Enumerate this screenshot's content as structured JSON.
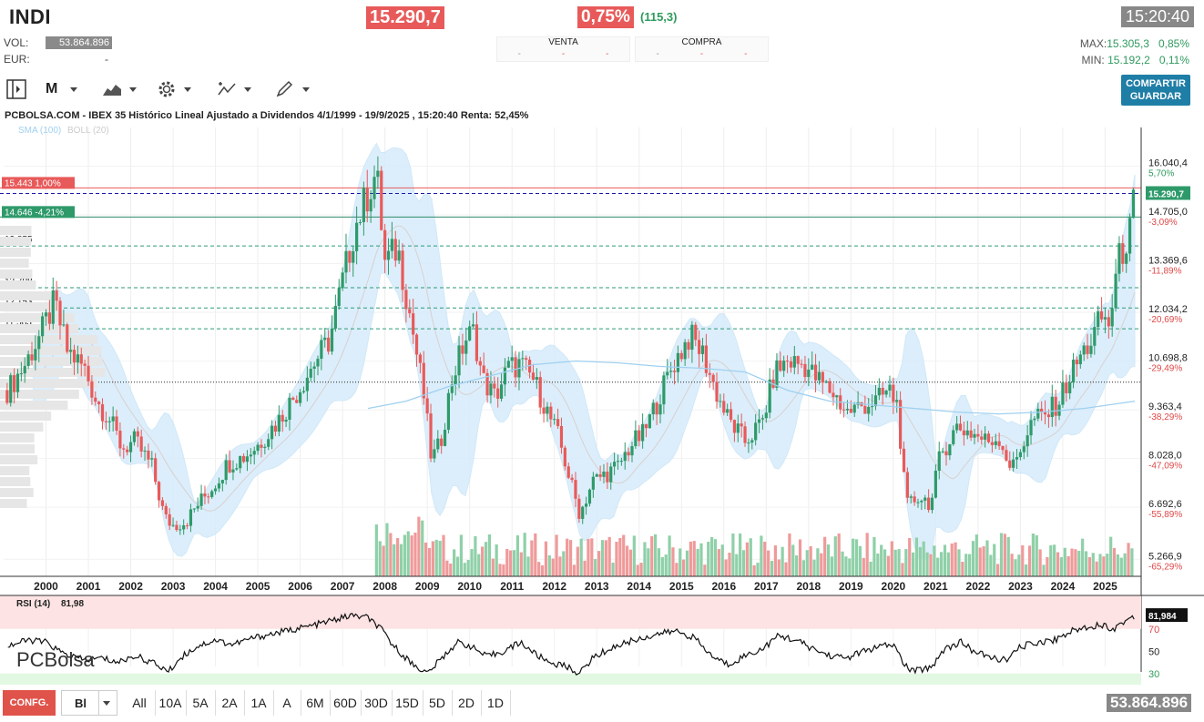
{
  "header": {
    "ticker": "INDI",
    "price": "15.290,7",
    "change_pct": "0,75%",
    "change_abs": "(115,3)",
    "time": "15:20:40",
    "vol_label": "VOL:",
    "vol_value": "53.864.896",
    "eur_label": "EUR:",
    "eur_value": "-",
    "venta_label": "VENTA",
    "compra_label": "COMPRA",
    "dash": "-",
    "max_label": "MAX:",
    "max_value": "15.305,3",
    "max_pct": "0,85%",
    "min_label": "MIN:",
    "min_value": "15.192,2",
    "min_pct": "0,11%"
  },
  "toolbar": {
    "period": "M",
    "share_label": "COMPARTIR",
    "save_label": "GUARDAR"
  },
  "colors": {
    "up": "#2e9a6a",
    "down": "#e85a5a",
    "band": "#d6ecfb",
    "sma": "#9fd0f0",
    "accent": "#1f7ea6"
  },
  "chart_data": [
    {
      "type": "candlestick",
      "title": "PCBOLSA.COM - IBEX 35 Histórico Lineal Ajustado a Dividendos 4/1/1999 - 19/9/2025 , 15:20:40 Renta: 52,45%",
      "legend": [
        "SMA (100)",
        "BOLL (20)"
      ],
      "x_labels": [
        "2000",
        "2001",
        "2002",
        "2003",
        "2004",
        "2005",
        "2006",
        "2007",
        "2008",
        "2009",
        "2010",
        "2011",
        "2012",
        "2013",
        "2014",
        "2015",
        "2016",
        "2017",
        "2018",
        "2019",
        "2020",
        "2021",
        "2022",
        "2023",
        "2024",
        "2025"
      ],
      "y_ticks": [
        {
          "value": 16040.4,
          "label": "16.040,4",
          "pct": "5,70%"
        },
        {
          "value": 14705.0,
          "label": "14.705,0",
          "pct": "-3,09%"
        },
        {
          "value": 13369.6,
          "label": "13.369,6",
          "pct": "-11,89%"
        },
        {
          "value": 12034.2,
          "label": "12.034,2",
          "pct": "-20,69%"
        },
        {
          "value": 10698.8,
          "label": "10.698,8",
          "pct": "-29,49%"
        },
        {
          "value": 9363.4,
          "label": "9.363,4",
          "pct": "-38,29%"
        },
        {
          "value": 8028.0,
          "label": "8.028,0",
          "pct": "-47,09%"
        },
        {
          "value": 6692.6,
          "label": "6.692,6",
          "pct": "-55,89%"
        },
        {
          "value": 5266.9,
          "label": "5.266,9",
          "pct": "-65,29%"
        }
      ],
      "ylim": [
        4800,
        17100
      ],
      "last_price": {
        "value": 15290.7,
        "label": "15.290,7"
      },
      "levels": [
        {
          "value": 15443,
          "label": "15.443  1,00%",
          "kind": "resistance"
        },
        {
          "value": 14646,
          "label": "14.646  -4,21%",
          "kind": "support"
        },
        {
          "value": 13855,
          "label": "13.855",
          "kind": "dashed"
        },
        {
          "value": 12708,
          "label": "12.708",
          "kind": "dashed"
        },
        {
          "value": 12153,
          "label": "12.153",
          "kind": "dashed"
        },
        {
          "value": 11583,
          "label": "11.583",
          "kind": "dashed"
        },
        {
          "value": 10120,
          "label": "",
          "kind": "dotted"
        }
      ],
      "close_path": [
        [
          1999.1,
          9900
        ],
        [
          1999.5,
          10600
        ],
        [
          1999.9,
          11500
        ],
        [
          2000.2,
          12300
        ],
        [
          2000.5,
          11000
        ],
        [
          2000.9,
          10500
        ],
        [
          2001.2,
          9600
        ],
        [
          2001.5,
          9100
        ],
        [
          2001.8,
          8300
        ],
        [
          2002.1,
          8500
        ],
        [
          2002.5,
          7800
        ],
        [
          2002.8,
          6400
        ],
        [
          2003.0,
          6200
        ],
        [
          2003.3,
          6300
        ],
        [
          2003.6,
          6800
        ],
        [
          2003.9,
          7200
        ],
        [
          2004.3,
          7900
        ],
        [
          2004.7,
          8100
        ],
        [
          2005.0,
          8400
        ],
        [
          2005.5,
          9100
        ],
        [
          2005.9,
          9800
        ],
        [
          2006.3,
          10600
        ],
        [
          2006.7,
          11300
        ],
        [
          2007.0,
          12900
        ],
        [
          2007.3,
          14400
        ],
        [
          2007.6,
          15300
        ],
        [
          2007.8,
          15900
        ],
        [
          2008.0,
          13400
        ],
        [
          2008.3,
          13800
        ],
        [
          2008.6,
          11900
        ],
        [
          2008.9,
          9900
        ],
        [
          2009.1,
          8000
        ],
        [
          2009.3,
          8400
        ],
        [
          2009.6,
          10300
        ],
        [
          2009.9,
          11300
        ],
        [
          2010.1,
          11500
        ],
        [
          2010.3,
          10200
        ],
        [
          2010.6,
          9700
        ],
        [
          2010.9,
          10500
        ],
        [
          2011.2,
          10600
        ],
        [
          2011.5,
          10200
        ],
        [
          2011.8,
          9400
        ],
        [
          2012.1,
          8600
        ],
        [
          2012.4,
          7300
        ],
        [
          2012.6,
          6500
        ],
        [
          2012.9,
          7400
        ],
        [
          2013.2,
          7600
        ],
        [
          2013.5,
          7800
        ],
        [
          2013.8,
          8400
        ],
        [
          2014.1,
          8700
        ],
        [
          2014.5,
          9800
        ],
        [
          2014.8,
          10600
        ],
        [
          2015.2,
          11400
        ],
        [
          2015.5,
          10900
        ],
        [
          2015.8,
          9900
        ],
        [
          2016.1,
          9100
        ],
        [
          2016.5,
          8500
        ],
        [
          2016.9,
          9000
        ],
        [
          2017.2,
          10400
        ],
        [
          2017.5,
          10700
        ],
        [
          2017.9,
          10600
        ],
        [
          2018.2,
          10200
        ],
        [
          2018.6,
          9800
        ],
        [
          2018.9,
          9300
        ],
        [
          2019.3,
          9500
        ],
        [
          2019.6,
          9600
        ],
        [
          2019.9,
          9900
        ],
        [
          2020.1,
          9500
        ],
        [
          2020.3,
          6700
        ],
        [
          2020.6,
          7000
        ],
        [
          2020.9,
          6800
        ],
        [
          2021.1,
          8100
        ],
        [
          2021.5,
          8900
        ],
        [
          2021.9,
          8700
        ],
        [
          2022.2,
          8500
        ],
        [
          2022.5,
          8600
        ],
        [
          2022.8,
          7700
        ],
        [
          2023.0,
          8300
        ],
        [
          2023.3,
          9100
        ],
        [
          2023.6,
          9200
        ],
        [
          2023.9,
          9600
        ],
        [
          2024.1,
          10100
        ],
        [
          2024.4,
          10800
        ],
        [
          2024.7,
          11300
        ],
        [
          2024.9,
          11900
        ],
        [
          2025.1,
          11700
        ],
        [
          2025.3,
          13400
        ],
        [
          2025.5,
          14000
        ],
        [
          2025.6,
          14300
        ],
        [
          2025.7,
          15290.7
        ]
      ],
      "sma_path": [
        [
          2007.6,
          9400
        ],
        [
          2008.5,
          9600
        ],
        [
          2009.5,
          10000
        ],
        [
          2010.5,
          10300
        ],
        [
          2011.5,
          10600
        ],
        [
          2012.5,
          10700
        ],
        [
          2013.5,
          10650
        ],
        [
          2014.5,
          10550
        ],
        [
          2015.5,
          10500
        ],
        [
          2016.5,
          10400
        ],
        [
          2017.5,
          9900
        ],
        [
          2018.5,
          9600
        ],
        [
          2019.5,
          9500
        ],
        [
          2020.5,
          9400
        ],
        [
          2021.5,
          9300
        ],
        [
          2022.5,
          9250
        ],
        [
          2023.5,
          9300
        ],
        [
          2024.5,
          9400
        ],
        [
          2025.7,
          9600
        ]
      ]
    },
    {
      "type": "line",
      "title": "RSI (14)",
      "last_label": "81,98",
      "last_value": 81.984,
      "last_value_label": "81,984",
      "ylim": [
        20,
        100
      ],
      "y_ticks": [
        70,
        50,
        30
      ],
      "points": [
        [
          1999.1,
          55
        ],
        [
          1999.6,
          60
        ],
        [
          2000.0,
          58
        ],
        [
          2000.4,
          48
        ],
        [
          2000.9,
          42
        ],
        [
          2001.3,
          44
        ],
        [
          2001.7,
          40
        ],
        [
          2002.1,
          46
        ],
        [
          2002.5,
          40
        ],
        [
          2002.9,
          32
        ],
        [
          2003.2,
          45
        ],
        [
          2003.6,
          55
        ],
        [
          2004.0,
          60
        ],
        [
          2004.4,
          56
        ],
        [
          2004.9,
          62
        ],
        [
          2005.4,
          66
        ],
        [
          2005.9,
          70
        ],
        [
          2006.3,
          73
        ],
        [
          2006.8,
          78
        ],
        [
          2007.2,
          82
        ],
        [
          2007.6,
          80
        ],
        [
          2007.9,
          70
        ],
        [
          2008.2,
          55
        ],
        [
          2008.6,
          40
        ],
        [
          2009.0,
          30
        ],
        [
          2009.3,
          42
        ],
        [
          2009.7,
          58
        ],
        [
          2010.0,
          55
        ],
        [
          2010.4,
          45
        ],
        [
          2010.8,
          50
        ],
        [
          2011.2,
          58
        ],
        [
          2011.6,
          46
        ],
        [
          2011.9,
          40
        ],
        [
          2012.3,
          36
        ],
        [
          2012.6,
          30
        ],
        [
          2012.9,
          44
        ],
        [
          2013.3,
          52
        ],
        [
          2013.7,
          58
        ],
        [
          2014.1,
          62
        ],
        [
          2014.5,
          66
        ],
        [
          2014.9,
          68
        ],
        [
          2015.3,
          62
        ],
        [
          2015.7,
          46
        ],
        [
          2016.1,
          38
        ],
        [
          2016.5,
          46
        ],
        [
          2016.9,
          52
        ],
        [
          2017.3,
          64
        ],
        [
          2017.7,
          60
        ],
        [
          2018.1,
          52
        ],
        [
          2018.5,
          46
        ],
        [
          2018.9,
          44
        ],
        [
          2019.3,
          50
        ],
        [
          2019.7,
          54
        ],
        [
          2020.0,
          56
        ],
        [
          2020.3,
          36
        ],
        [
          2020.5,
          32
        ],
        [
          2020.9,
          36
        ],
        [
          2021.2,
          52
        ],
        [
          2021.6,
          58
        ],
        [
          2021.9,
          50
        ],
        [
          2022.3,
          44
        ],
        [
          2022.7,
          42
        ],
        [
          2023.0,
          54
        ],
        [
          2023.4,
          58
        ],
        [
          2023.8,
          60
        ],
        [
          2024.2,
          68
        ],
        [
          2024.6,
          72
        ],
        [
          2024.9,
          74
        ],
        [
          2025.2,
          70
        ],
        [
          2025.5,
          78
        ],
        [
          2025.7,
          81.98
        ]
      ]
    }
  ],
  "ranges": [
    "All",
    "10A",
    "5A",
    "2A",
    "1A",
    "A",
    "6M",
    "60D",
    "30D",
    "15D",
    "5D",
    "2D",
    "1D"
  ],
  "footer": {
    "config_label": "CONFG.",
    "type_select": "Bl",
    "volume": "53.864.896"
  },
  "watermark": "PCBolsa"
}
